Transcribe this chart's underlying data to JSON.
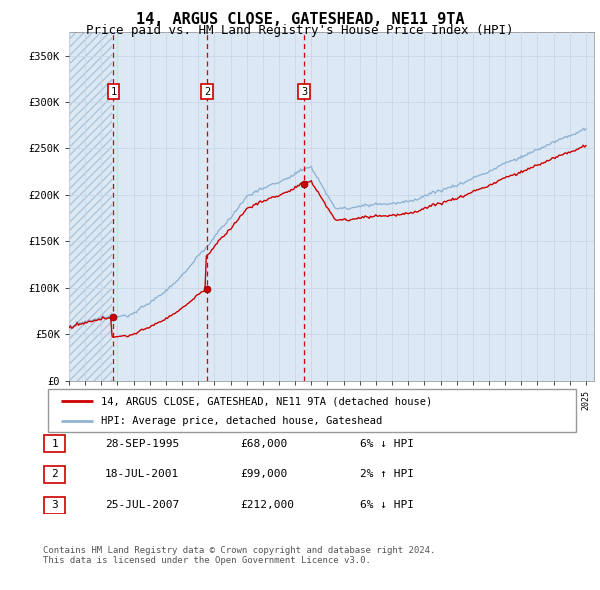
{
  "title": "14, ARGUS CLOSE, GATESHEAD, NE11 9TA",
  "subtitle": "Price paid vs. HM Land Registry's House Price Index (HPI)",
  "title_fontsize": 11,
  "subtitle_fontsize": 9,
  "ylabel_ticks": [
    "£0",
    "£50K",
    "£100K",
    "£150K",
    "£200K",
    "£250K",
    "£300K",
    "£350K"
  ],
  "ytick_values": [
    0,
    50000,
    100000,
    150000,
    200000,
    250000,
    300000,
    350000
  ],
  "ylim": [
    0,
    375000
  ],
  "hpi_color": "#92b4d4",
  "price_color": "#cc0000",
  "grid_color": "#c8d8e8",
  "bg_color": "#dce9f5",
  "sale_dates_decimal": [
    1995.747,
    2001.538,
    2007.558
  ],
  "sale_prices": [
    68000,
    99000,
    212000
  ],
  "sale_labels": [
    "1",
    "2",
    "3"
  ],
  "legend_label_price": "14, ARGUS CLOSE, GATESHEAD, NE11 9TA (detached house)",
  "legend_label_hpi": "HPI: Average price, detached house, Gateshead",
  "table_rows": [
    {
      "label": "1",
      "date": "28-SEP-1995",
      "price": "£68,000",
      "change": "6% ↓ HPI"
    },
    {
      "label": "2",
      "date": "18-JUL-2001",
      "price": "£99,000",
      "change": "2% ↑ HPI"
    },
    {
      "label": "3",
      "date": "25-JUL-2007",
      "price": "£212,000",
      "change": "6% ↓ HPI"
    }
  ],
  "footnote1": "Contains HM Land Registry data © Crown copyright and database right 2024.",
  "footnote2": "This data is licensed under the Open Government Licence v3.0."
}
